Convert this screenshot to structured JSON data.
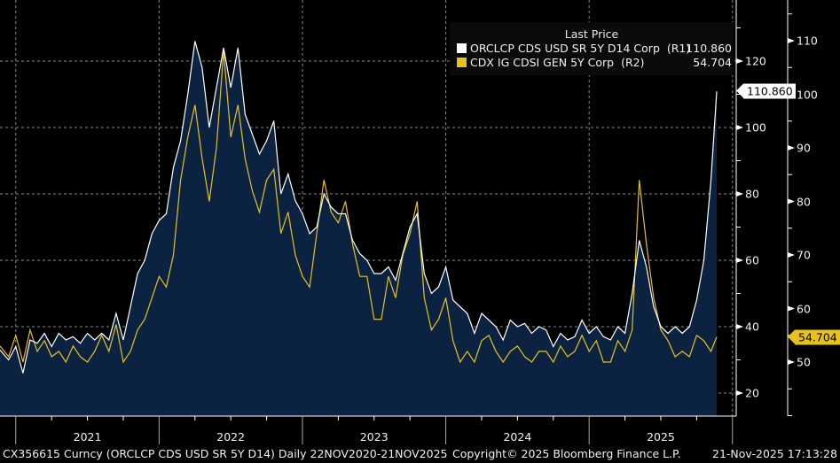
{
  "chart_data": {
    "type": "line",
    "title": "",
    "legend": {
      "title": "Last Price",
      "placement": "top-right",
      "entries": [
        {
          "name": "ORCLCP CDS USD SR 5Y D14 Corp",
          "axis_tag": "(R1)",
          "last": "110.860",
          "color": "#ffffff"
        },
        {
          "name": "CDX IG CDSI GEN 5Y Corp",
          "axis_tag": "(R2)",
          "last": "54.704",
          "color": "#e8c21c"
        }
      ]
    },
    "x_axis": {
      "type": "date",
      "range": [
        "2020-11-22",
        "2025-11-21"
      ],
      "tick_labels": [
        "2021",
        "2022",
        "2023",
        "2024",
        "2025"
      ]
    },
    "y_axes": [
      {
        "id": "R1",
        "side": "right-inner",
        "range": [
          13,
          138
        ],
        "ticks": [
          20,
          40,
          60,
          80,
          100,
          120
        ],
        "minor_step": 10
      },
      {
        "id": "R2",
        "side": "right-outer",
        "range": [
          40,
          117
        ],
        "ticks": [
          50,
          60,
          70,
          80,
          90,
          100,
          110
        ],
        "minor_step": 5
      }
    ],
    "grid": true,
    "series": [
      {
        "name": "ORCLCP CDS USD SR 5Y D14 Corp",
        "axis": "R1",
        "style": "area",
        "x": [
          2020.89,
          2020.95,
          2021.0,
          2021.05,
          2021.1,
          2021.15,
          2021.2,
          2021.25,
          2021.3,
          2021.35,
          2021.4,
          2021.45,
          2021.5,
          2021.55,
          2021.6,
          2021.65,
          2021.7,
          2021.75,
          2021.8,
          2021.85,
          2021.9,
          2021.95,
          2022.0,
          2022.05,
          2022.1,
          2022.15,
          2022.2,
          2022.25,
          2022.3,
          2022.35,
          2022.4,
          2022.45,
          2022.5,
          2022.55,
          2022.6,
          2022.65,
          2022.7,
          2022.75,
          2022.8,
          2022.85,
          2022.9,
          2022.95,
          2023.0,
          2023.05,
          2023.1,
          2023.15,
          2023.2,
          2023.25,
          2023.3,
          2023.35,
          2023.4,
          2023.45,
          2023.5,
          2023.55,
          2023.6,
          2023.65,
          2023.7,
          2023.75,
          2023.8,
          2023.85,
          2023.9,
          2023.95,
          2024.0,
          2024.05,
          2024.1,
          2024.15,
          2024.2,
          2024.25,
          2024.3,
          2024.35,
          2024.4,
          2024.45,
          2024.5,
          2024.55,
          2024.6,
          2024.65,
          2024.7,
          2024.75,
          2024.8,
          2024.85,
          2024.9,
          2024.95,
          2025.0,
          2025.05,
          2025.1,
          2025.15,
          2025.2,
          2025.25,
          2025.3,
          2025.35,
          2025.4,
          2025.45,
          2025.5,
          2025.55,
          2025.6,
          2025.65,
          2025.7,
          2025.75,
          2025.8,
          2025.85,
          2025.89
        ],
        "y": [
          33,
          30,
          34,
          26,
          36,
          35,
          38,
          34,
          38,
          36,
          37,
          35,
          38,
          36,
          38,
          36,
          44,
          36,
          46,
          56,
          60,
          68,
          72,
          74,
          88,
          96,
          110,
          126,
          118,
          100,
          112,
          124,
          112,
          124,
          104,
          98,
          92,
          96,
          102,
          80,
          86,
          78,
          74,
          68,
          70,
          80,
          76,
          74,
          74,
          66,
          62,
          60,
          56,
          56,
          58,
          54,
          62,
          70,
          74,
          56,
          50,
          52,
          58,
          48,
          46,
          44,
          38,
          44,
          42,
          40,
          36,
          42,
          40,
          41,
          38,
          40,
          39,
          34,
          38,
          36,
          37,
          42,
          38,
          40,
          37,
          36,
          40,
          38,
          50,
          66,
          58,
          46,
          40,
          38,
          40,
          38,
          40,
          48,
          60,
          84,
          110.86
        ]
      },
      {
        "name": "CDX IG CDSI GEN 5Y Corp",
        "axis": "R2",
        "style": "line",
        "x": [
          2020.89,
          2020.95,
          2021.0,
          2021.05,
          2021.1,
          2021.15,
          2021.2,
          2021.25,
          2021.3,
          2021.35,
          2021.4,
          2021.45,
          2021.5,
          2021.55,
          2021.6,
          2021.65,
          2021.7,
          2021.75,
          2021.8,
          2021.85,
          2021.9,
          2021.95,
          2022.0,
          2022.05,
          2022.1,
          2022.15,
          2022.2,
          2022.25,
          2022.3,
          2022.35,
          2022.4,
          2022.45,
          2022.5,
          2022.55,
          2022.6,
          2022.65,
          2022.7,
          2022.75,
          2022.8,
          2022.85,
          2022.9,
          2022.95,
          2023.0,
          2023.05,
          2023.1,
          2023.15,
          2023.2,
          2023.25,
          2023.3,
          2023.35,
          2023.4,
          2023.45,
          2023.5,
          2023.55,
          2023.6,
          2023.65,
          2023.7,
          2023.75,
          2023.8,
          2023.85,
          2023.9,
          2023.95,
          2024.0,
          2024.05,
          2024.1,
          2024.15,
          2024.2,
          2024.25,
          2024.3,
          2024.35,
          2024.4,
          2024.45,
          2024.5,
          2024.55,
          2024.6,
          2024.65,
          2024.7,
          2024.75,
          2024.8,
          2024.85,
          2024.9,
          2024.95,
          2025.0,
          2025.05,
          2025.1,
          2025.15,
          2025.2,
          2025.25,
          2025.3,
          2025.35,
          2025.4,
          2025.45,
          2025.5,
          2025.55,
          2025.6,
          2025.65,
          2025.7,
          2025.75,
          2025.8,
          2025.85,
          2025.89
        ],
        "y": [
          53,
          51,
          55,
          50,
          56,
          52,
          54,
          51,
          52,
          50,
          53,
          51,
          50,
          52,
          55,
          52,
          57,
          50,
          52,
          56,
          58,
          62,
          66,
          64,
          70,
          84,
          92,
          98,
          88,
          80,
          90,
          108,
          92,
          98,
          88,
          82,
          78,
          84,
          86,
          74,
          78,
          70,
          66,
          64,
          74,
          84,
          78,
          76,
          80,
          72,
          66,
          66,
          58,
          58,
          66,
          62,
          70,
          74,
          80,
          62,
          56,
          58,
          62,
          54,
          50,
          52,
          50,
          54,
          55,
          52,
          50,
          52,
          53,
          51,
          50,
          52,
          52,
          50,
          53,
          51,
          52,
          55,
          52,
          54,
          50,
          50,
          54,
          52,
          56,
          84,
          72,
          62,
          56,
          54,
          51,
          52,
          51,
          55,
          54,
          52,
          54.704
        ]
      }
    ],
    "last_value_tags": [
      {
        "axis": "R1",
        "label": "110.860"
      },
      {
        "axis": "R2",
        "label": "54.704"
      }
    ]
  },
  "footer": {
    "security": "CX356615 Curncy (ORCLCP CDS USD SR 5Y D14) Daily 22NOV2020-21NOV2025",
    "copyright": "Copyright© 2025 Bloomberg Finance L.P.",
    "timestamp": "21-Nov-2025 17:13:28"
  },
  "colors": {
    "background": "#000000",
    "area_fill": "#0b2240",
    "r1_line": "#ffffff",
    "r2_line": "#e8c21c",
    "grid": "#8a8a8a"
  }
}
